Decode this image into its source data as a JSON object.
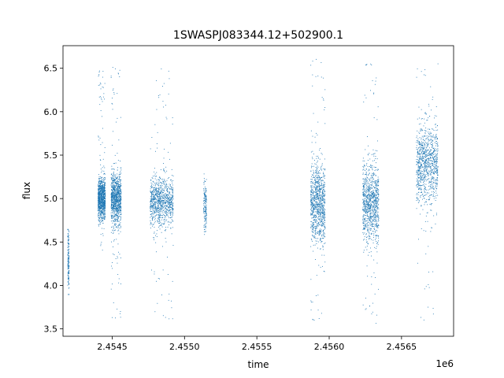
{
  "chart_data": {
    "type": "scatter",
    "title": "1SWASPJ083344.12+502900.1",
    "xlabel": "time",
    "ylabel": "flux",
    "x_offset_label": "1e6",
    "xlim": [
      2.45416,
      2.45686
    ],
    "ylim": [
      3.415,
      6.76
    ],
    "xticks": [
      2.4545,
      2.455,
      2.4555,
      2.456,
      2.4565
    ],
    "xtick_labels": [
      "2.4545",
      "2.4550",
      "2.4555",
      "2.4560",
      "2.4565"
    ],
    "yticks": [
      3.5,
      4.0,
      4.5,
      5.0,
      5.5,
      6.0,
      6.5
    ],
    "ytick_labels": [
      "3.5",
      "4.0",
      "4.5",
      "5.0",
      "5.5",
      "6.0",
      "6.5"
    ],
    "grid": false,
    "marker_color": "#1f77b4",
    "series": [
      {
        "clusters": [
          {
            "x_range": [
              2.45419,
              2.4542
            ],
            "center": 4.3,
            "spread": 0.18,
            "outlier_range": [
              3.9,
              4.65
            ]
          },
          {
            "x_range": [
              2.4544,
              2.45445
            ],
            "center": 5.0,
            "spread": 0.12,
            "outlier_range": [
              4.4,
              6.55
            ]
          },
          {
            "x_range": [
              2.45449,
              2.45456
            ],
            "center": 5.0,
            "spread": 0.15,
            "outlier_range": [
              3.6,
              6.6
            ]
          },
          {
            "x_range": [
              2.45476,
              2.45492
            ],
            "center": 4.97,
            "spread": 0.14,
            "outlier_range": [
              3.58,
              6.5
            ]
          },
          {
            "x_range": [
              2.45513,
              2.45515
            ],
            "center": 4.93,
            "spread": 0.15,
            "outlier_range": [
              4.55,
              5.3
            ]
          },
          {
            "x_range": [
              2.45587,
              2.45597
            ],
            "center": 4.95,
            "spread": 0.22,
            "outlier_range": [
              3.6,
              6.62
            ]
          },
          {
            "x_range": [
              2.45623,
              2.45634
            ],
            "center": 4.95,
            "spread": 0.22,
            "outlier_range": [
              3.55,
              6.58
            ]
          },
          {
            "x_range": [
              2.4566,
              2.45675
            ],
            "center": 5.4,
            "spread": 0.22,
            "outlier_range": [
              3.55,
              6.6
            ]
          }
        ]
      }
    ]
  }
}
